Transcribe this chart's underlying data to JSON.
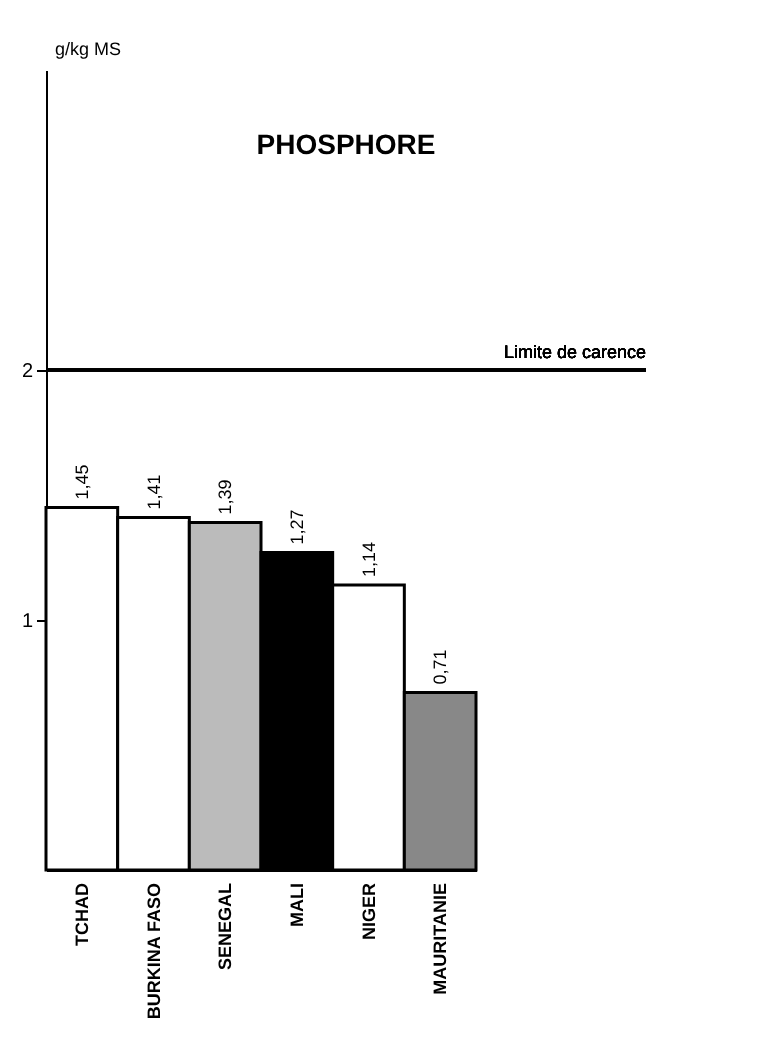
{
  "chart_data": {
    "type": "bar",
    "title": "PHOSPHORE",
    "ylabel": "g/kg MS",
    "categories": [
      "TCHAD",
      "BURKINA FASO",
      "SENEGAL",
      "MALI",
      "NIGER",
      "MAURITANIE"
    ],
    "values": [
      1.45,
      1.41,
      1.39,
      1.27,
      1.14,
      0.71
    ],
    "value_labels": [
      "1,45",
      "1,41",
      "1,39",
      "1,27",
      "1,14",
      "0,71"
    ],
    "colors": [
      "#ffffff",
      "#ffffff",
      "#bbbbbb",
      "#000000",
      "#ffffff",
      "#888888"
    ],
    "ylim": [
      0,
      3.2
    ],
    "yticks": [
      1,
      2
    ],
    "grid": false,
    "legend": false,
    "ref_lines": [
      {
        "axis": "y",
        "value": 2,
        "label": "Limite de carence"
      }
    ]
  }
}
